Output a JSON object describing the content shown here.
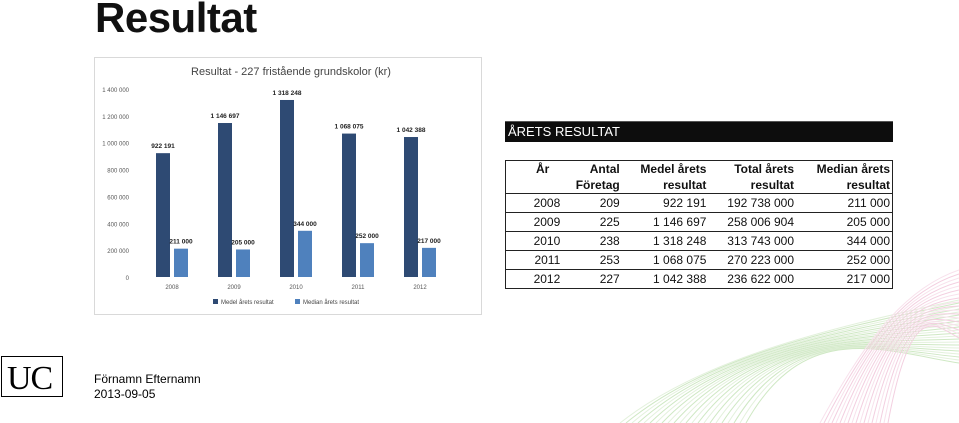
{
  "slide": {
    "title": "Resultat",
    "footer_name": "Förnamn Efternamn",
    "footer_date": "2013-09-05",
    "logo_text": "UC"
  },
  "table": {
    "heading": "ÅRETS RESULTAT",
    "columns": [
      [
        "År"
      ],
      [
        "Antal",
        "Företag"
      ],
      [
        "Medel årets",
        "resultat"
      ],
      [
        "Total  årets",
        "resultat"
      ],
      [
        "Median  årets",
        "resultat"
      ]
    ],
    "rows": [
      [
        "2008",
        "209",
        "922 191",
        "192 738 000",
        "211 000"
      ],
      [
        "2009",
        "225",
        "1 146 697",
        "258 006 904",
        "205 000"
      ],
      [
        "2010",
        "238",
        "1 318 248",
        "313 743 000",
        "344 000"
      ],
      [
        "2011",
        "253",
        "1 068 075",
        "270 223 000",
        "252 000"
      ],
      [
        "2012",
        "227",
        "1 042 388",
        "236 622 000",
        "217 000"
      ]
    ]
  },
  "chart_data": {
    "type": "bar",
    "title": "Resultat - 227 fristående grundskolor (kr)",
    "categories": [
      "2008",
      "2009",
      "2010",
      "2011",
      "2012"
    ],
    "series": [
      {
        "name": "Medel årets resultat",
        "values": [
          922191,
          1146697,
          1318248,
          1068075,
          1042388
        ],
        "labels": [
          "922 191",
          "1 146 697",
          "1 318 248",
          "1 068 075",
          "1 042 388"
        ],
        "color": "#2e4a73"
      },
      {
        "name": "Median  årets resultat",
        "values": [
          211000,
          205000,
          344000,
          252000,
          217000
        ],
        "labels": [
          "211 000",
          "205 000",
          "344 000",
          "252 000",
          "217 000"
        ],
        "color": "#4f81bd"
      }
    ],
    "ylim": [
      0,
      1400000
    ],
    "yticks": [
      0,
      200000,
      400000,
      600000,
      800000,
      1000000,
      1200000,
      1400000
    ],
    "ytick_labels": [
      "0",
      "200 000",
      "400 000",
      "600 000",
      "800 000",
      "1 000 000",
      "1 200 000",
      "1 400 000"
    ],
    "xlabel": "",
    "ylabel": "",
    "grid": false,
    "legend": "bottom"
  }
}
